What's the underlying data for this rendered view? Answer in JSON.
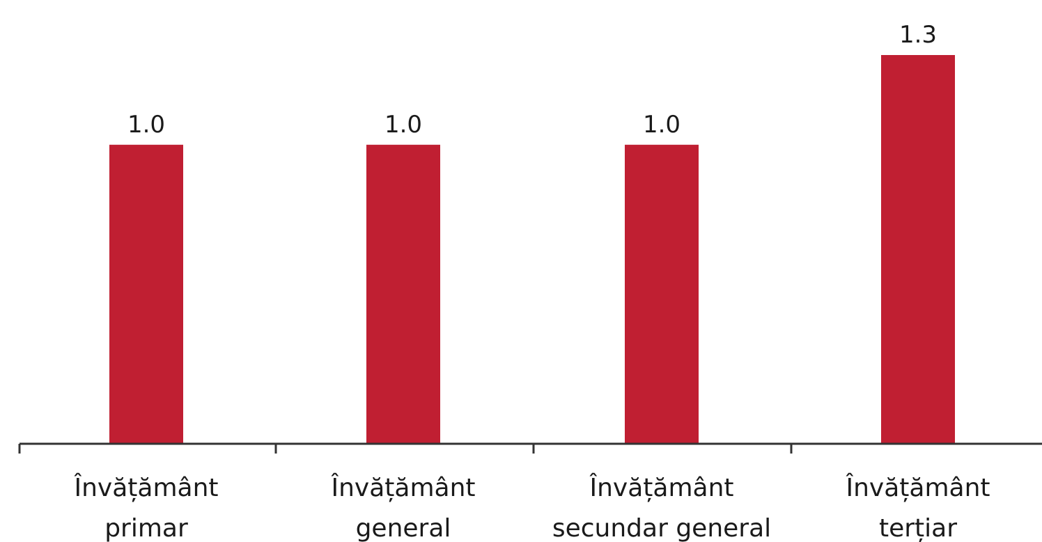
{
  "chart_data": {
    "type": "bar",
    "categories": [
      [
        "Învățământ",
        "primar"
      ],
      [
        "Învățământ",
        "general"
      ],
      [
        "Învățământ",
        "secundar general"
      ],
      [
        "Învățământ",
        "terțiar"
      ]
    ],
    "values": [
      1.0,
      1.0,
      1.0,
      1.3
    ],
    "value_labels": [
      "1.0",
      "1.0",
      "1.0",
      "1.3"
    ],
    "ylim": [
      0,
      1.3
    ],
    "grid": false,
    "legend": "none",
    "bar_color": "#c01f32",
    "axis_color": "#333333"
  }
}
